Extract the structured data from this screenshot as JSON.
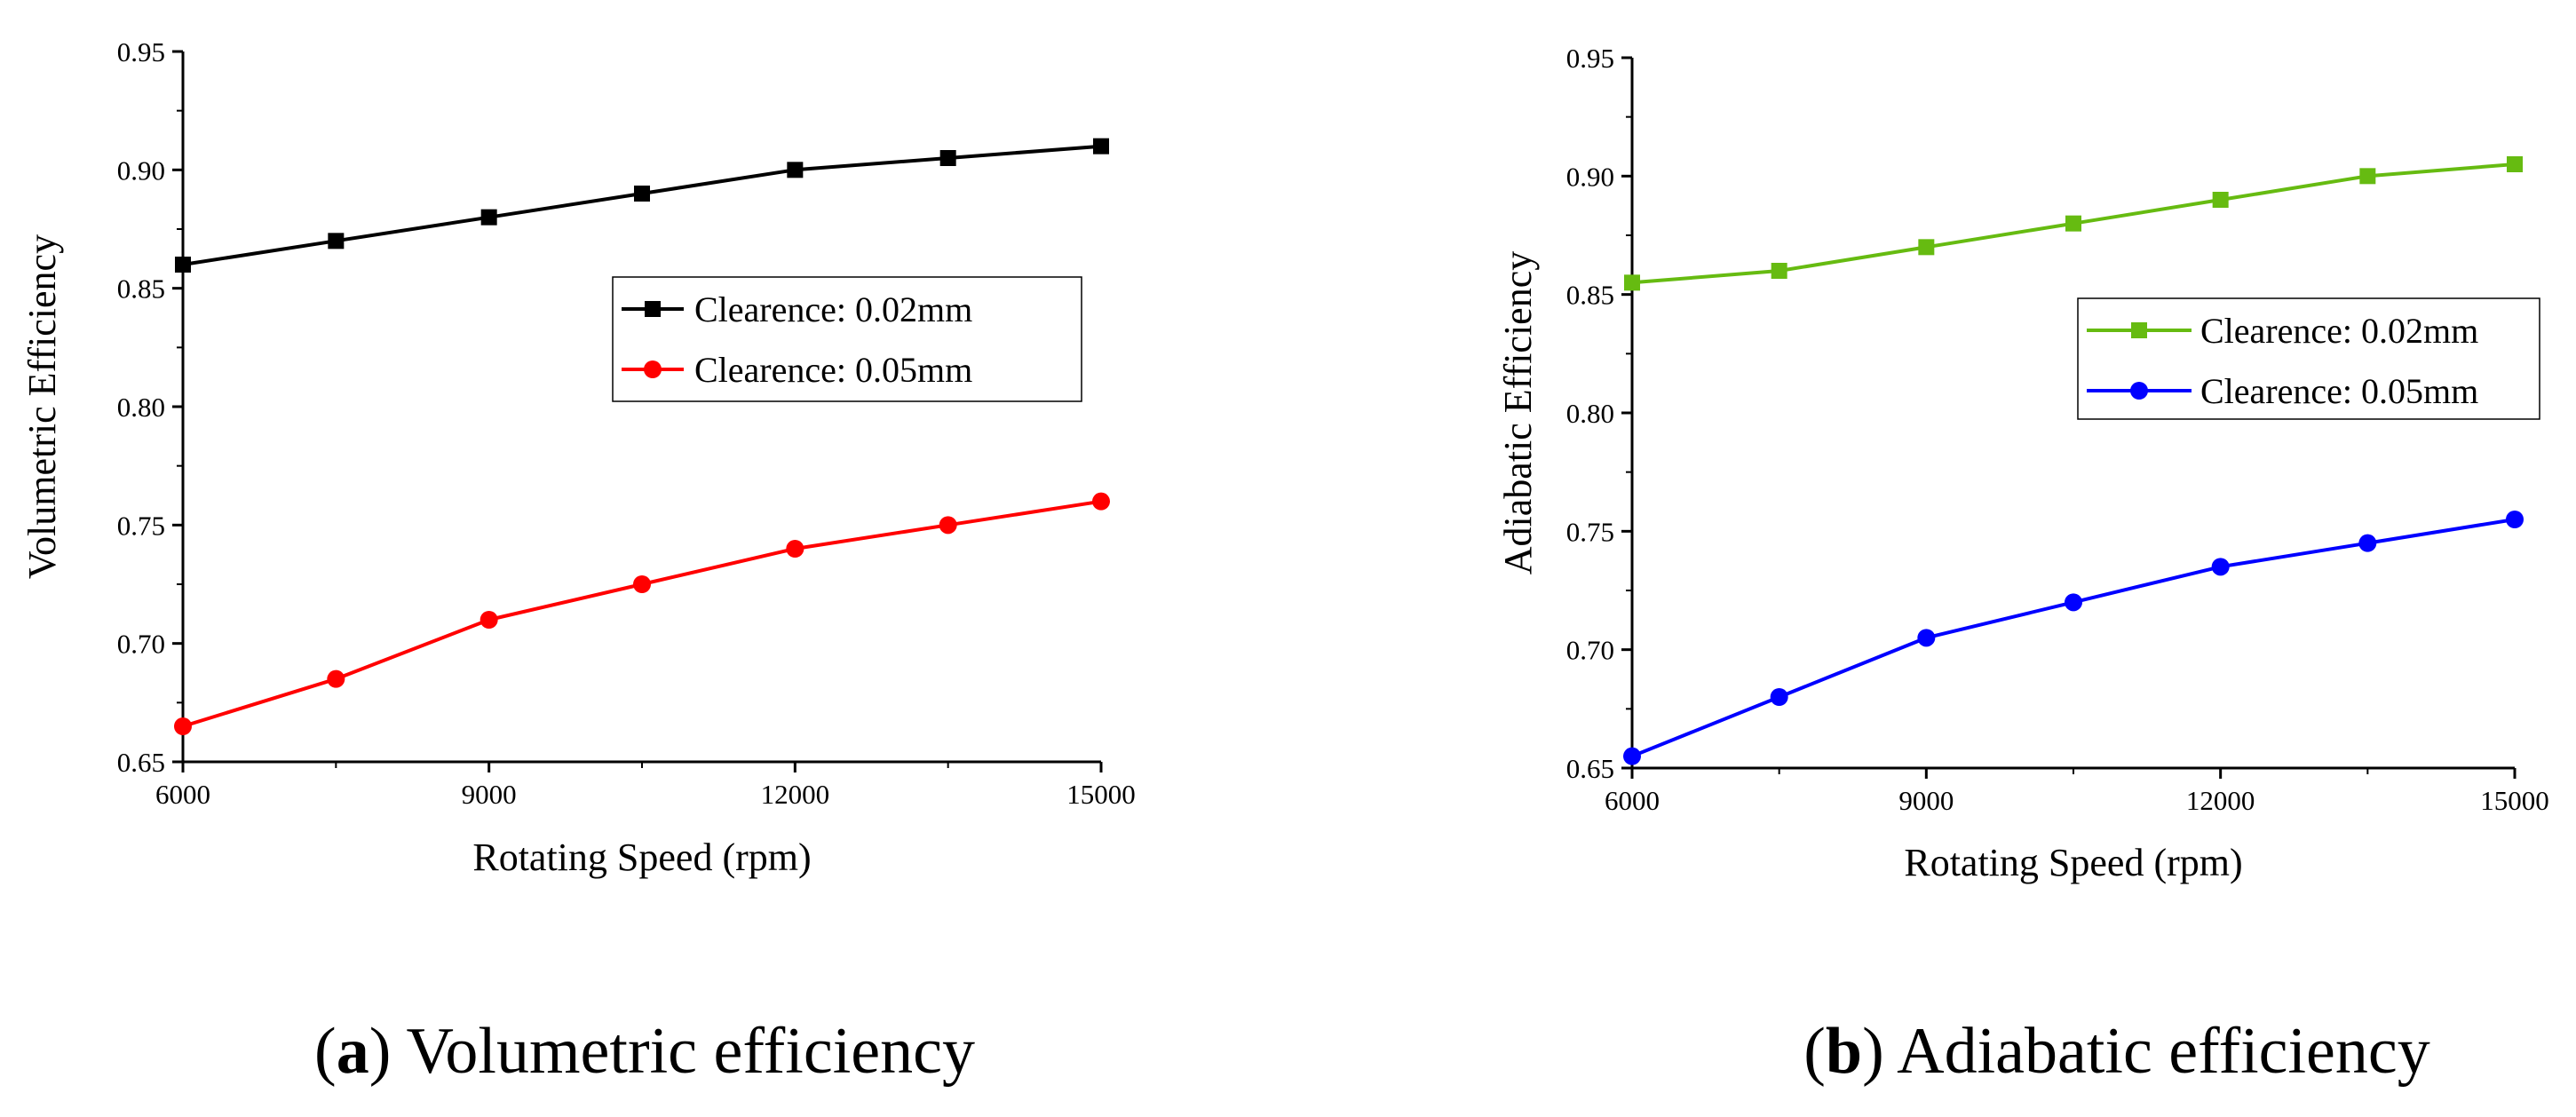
{
  "chart_data": [
    {
      "type": "line",
      "panel_letter": "a",
      "caption_text": " Volumetric efficiency",
      "xlabel": "Rotating Speed (rpm)",
      "ylabel": "Volumetric Efficiency",
      "xlim": [
        6000,
        15000
      ],
      "ylim": [
        0.65,
        0.95
      ],
      "xticks": [
        6000,
        9000,
        12000,
        15000
      ],
      "xtick_labels": [
        "6000",
        "9000",
        "12000",
        "15000"
      ],
      "yticks": [
        0.65,
        0.7,
        0.75,
        0.8,
        0.85,
        0.9,
        0.95
      ],
      "ytick_labels": [
        "0.65",
        "0.70",
        "0.75",
        "0.80",
        "0.85",
        "0.90",
        "0.95"
      ],
      "x": [
        6000,
        7500,
        9000,
        10500,
        12000,
        13500,
        15000
      ],
      "legend_position": "center-right",
      "series": [
        {
          "name": "Clearence: 0.02mm",
          "color": "#000000",
          "marker": "square",
          "values": [
            0.86,
            0.87,
            0.88,
            0.89,
            0.9,
            0.905,
            0.91
          ]
        },
        {
          "name": "Clearence: 0.05mm",
          "color": "#ff0000",
          "marker": "circle",
          "values": [
            0.665,
            0.685,
            0.71,
            0.725,
            0.74,
            0.75,
            0.76
          ]
        }
      ]
    },
    {
      "type": "line",
      "panel_letter": "b",
      "caption_text": " Adiabatic efficiency",
      "xlabel": "Rotating Speed (rpm)",
      "ylabel": "Adiabatic Efficiency",
      "xlim": [
        6000,
        15000
      ],
      "ylim": [
        0.65,
        0.95
      ],
      "xticks": [
        6000,
        9000,
        12000,
        15000
      ],
      "xtick_labels": [
        "6000",
        "9000",
        "12000",
        "15000"
      ],
      "yticks": [
        0.65,
        0.7,
        0.75,
        0.8,
        0.85,
        0.9,
        0.95
      ],
      "ytick_labels": [
        "0.65",
        "0.70",
        "0.75",
        "0.80",
        "0.85",
        "0.90",
        "0.95"
      ],
      "x": [
        6000,
        7500,
        9000,
        10500,
        12000,
        13500,
        15000
      ],
      "legend_position": "center-right",
      "series": [
        {
          "name": "Clearence: 0.02mm",
          "color": "#66bb11",
          "marker": "square",
          "values": [
            0.855,
            0.86,
            0.87,
            0.88,
            0.89,
            0.9,
            0.905
          ]
        },
        {
          "name": "Clearence: 0.05mm",
          "color": "#0000ff",
          "marker": "circle",
          "values": [
            0.655,
            0.68,
            0.705,
            0.72,
            0.735,
            0.745,
            0.755
          ]
        }
      ]
    }
  ]
}
